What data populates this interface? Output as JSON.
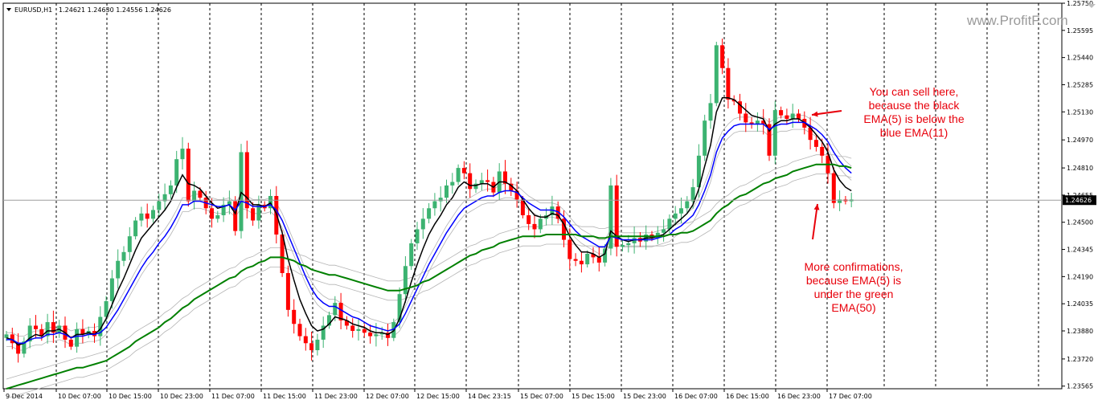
{
  "chart_data": {
    "type": "candlestick",
    "header": {
      "symbol": "EURUSD,H1",
      "ohlc": "1.24621 1.24630 1.24556 1.24626"
    },
    "watermark": "www.ProfitF.com",
    "current_price": {
      "value": 1.24626,
      "label": "1.24626"
    },
    "ylim": [
      1.2355,
      1.2575
    ],
    "yticks": [
      {
        "value": 1.2575,
        "label": "1.25750"
      },
      {
        "value": 1.25595,
        "label": "1.25595"
      },
      {
        "value": 1.2544,
        "label": "1.25440"
      },
      {
        "value": 1.25285,
        "label": "1.25285"
      },
      {
        "value": 1.2513,
        "label": "1.25130"
      },
      {
        "value": 1.2497,
        "label": "1.24970"
      },
      {
        "value": 1.2481,
        "label": "1.24810"
      },
      {
        "value": 1.24655,
        "label": "1.24655"
      },
      {
        "value": 1.245,
        "label": "1.24500"
      },
      {
        "value": 1.24345,
        "label": "1.24345"
      },
      {
        "value": 1.2419,
        "label": "1.24190"
      },
      {
        "value": 1.24035,
        "label": "1.24035"
      },
      {
        "value": 1.2388,
        "label": "1.23880"
      },
      {
        "value": 1.2372,
        "label": "1.23720"
      },
      {
        "value": 1.23565,
        "label": "1.23565"
      }
    ],
    "xticks": [
      "9 Dec 2014",
      "10 Dec 07:00",
      "10 Dec 15:00",
      "10 Dec 23:00",
      "11 Dec 07:00",
      "11 Dec 15:00",
      "11 Dec 23:00",
      "12 Dec 07:00",
      "12 Dec 15:00",
      "14 Dec 23:15",
      "15 Dec 07:00",
      "15 Dec 15:00",
      "15 Dec 23:00",
      "16 Dec 07:00",
      "16 Dec 15:00",
      "16 Dec 23:00",
      "17 Dec 07:00"
    ],
    "closes": [
      1.2386,
      1.2381,
      1.2375,
      1.2382,
      1.2391,
      1.2389,
      1.2385,
      1.2393,
      1.2387,
      1.2391,
      1.2383,
      1.2379,
      1.2389,
      1.2386,
      1.2388,
      1.2385,
      1.2396,
      1.2405,
      1.2418,
      1.2428,
      1.2433,
      1.2442,
      1.2451,
      1.2455,
      1.2452,
      1.2457,
      1.2462,
      1.2466,
      1.2471,
      1.2486,
      1.2492,
      1.2462,
      1.2468,
      1.2464,
      1.2458,
      1.2452,
      1.2454,
      1.246,
      1.2462,
      1.2445,
      1.249,
      1.2458,
      1.2451,
      1.246,
      1.2458,
      1.2465,
      1.2443,
      1.2421,
      1.24,
      1.2392,
      1.2385,
      1.2381,
      1.2377,
      1.2383,
      1.2391,
      1.2397,
      1.2404,
      1.2394,
      1.2391,
      1.2388,
      1.2389,
      1.2387,
      1.2385,
      1.2386,
      1.2387,
      1.2384,
      1.2393,
      1.2409,
      1.2425,
      1.2438,
      1.2446,
      1.2452,
      1.2458,
      1.2462,
      1.2464,
      1.2471,
      1.2473,
      1.2481,
      1.2478,
      1.2469,
      1.2472,
      1.2474,
      1.2473,
      1.2467,
      1.2479,
      1.2472,
      1.2468,
      1.2463,
      1.2454,
      1.2449,
      1.2446,
      1.2452,
      1.2454,
      1.2459,
      1.2452,
      1.244,
      1.2429,
      1.2428,
      1.2426,
      1.2432,
      1.243,
      1.2427,
      1.2435,
      1.2471,
      1.2436,
      1.2437,
      1.2438,
      1.2441,
      1.2439,
      1.2443,
      1.2441,
      1.2444,
      1.2446,
      1.2452,
      1.2455,
      1.2458,
      1.2462,
      1.247,
      1.2488,
      1.2508,
      1.2518,
      1.2551,
      1.2538,
      1.252,
      1.2519,
      1.2512,
      1.2507,
      1.2506,
      1.2508,
      1.2506,
      1.2488,
      1.2514,
      1.2511,
      1.2509,
      1.2512,
      1.2509,
      1.2504,
      1.2497,
      1.2493,
      1.2488,
      1.2478,
      1.2461,
      1.2463,
      1.2462,
      1.2463
    ],
    "series": [
      {
        "name": "EMA(5)",
        "color": "#000000",
        "values": [
          1.2384,
          1.2383,
          1.238,
          1.2381,
          1.2384,
          1.2386,
          1.2385,
          1.2388,
          1.2388,
          1.2389,
          1.2387,
          1.2384,
          1.2386,
          1.2386,
          1.2387,
          1.2386,
          1.2389,
          1.2395,
          1.2403,
          1.2411,
          1.2418,
          1.2426,
          1.2434,
          1.2441,
          1.2445,
          1.2449,
          1.2453,
          1.2457,
          1.2462,
          1.247,
          1.2477,
          1.2472,
          1.2471,
          1.2469,
          1.2465,
          1.2461,
          1.2458,
          1.2459,
          1.246,
          1.2455,
          1.2467,
          1.2464,
          1.246,
          1.246,
          1.2459,
          1.2461,
          1.2455,
          1.2444,
          1.2429,
          1.2417,
          1.2406,
          1.2398,
          1.2391,
          1.2388,
          1.2389,
          1.2392,
          1.2396,
          1.2395,
          1.2394,
          1.2392,
          1.2391,
          1.239,
          1.2388,
          1.2387,
          1.2387,
          1.2386,
          1.2388,
          1.2395,
          1.2405,
          1.2416,
          1.2426,
          1.2435,
          1.2443,
          1.2449,
          1.2454,
          1.246,
          1.2464,
          1.247,
          1.2473,
          1.2471,
          1.2471,
          1.2472,
          1.2472,
          1.247,
          1.2473,
          1.2473,
          1.2471,
          1.2468,
          1.2463,
          1.2458,
          1.2454,
          1.2453,
          1.2453,
          1.2455,
          1.2454,
          1.2449,
          1.2442,
          1.2437,
          1.2433,
          1.2433,
          1.2432,
          1.243,
          1.2432,
          1.2445,
          1.2442,
          1.244,
          1.2439,
          1.244,
          1.244,
          1.2441,
          1.2441,
          1.2442,
          1.2443,
          1.2446,
          1.2449,
          1.2452,
          1.2455,
          1.246,
          1.2469,
          1.2482,
          1.2494,
          1.2513,
          1.2521,
          1.2521,
          1.252,
          1.2517,
          1.2514,
          1.2511,
          1.251,
          1.2509,
          1.2502,
          1.2506,
          1.2508,
          1.2508,
          1.2509,
          1.2509,
          1.2507,
          1.2504,
          1.25,
          1.2496,
          1.249,
          1.248,
          1.2474,
          1.247,
          1.2468
        ]
      },
      {
        "name": "EMA(11)",
        "color": "#0000ff",
        "values": [
          1.2383,
          1.2383,
          1.2381,
          1.2381,
          1.2383,
          1.2384,
          1.2384,
          1.2386,
          1.2386,
          1.2387,
          1.2386,
          1.2384,
          1.2385,
          1.2385,
          1.2386,
          1.2386,
          1.2387,
          1.239,
          1.2395,
          1.24,
          1.2406,
          1.2412,
          1.2418,
          1.2424,
          1.2429,
          1.2433,
          1.2438,
          1.2442,
          1.2447,
          1.2453,
          1.246,
          1.246,
          1.2462,
          1.2462,
          1.2461,
          1.246,
          1.2459,
          1.2459,
          1.246,
          1.2457,
          1.2462,
          1.2461,
          1.2459,
          1.2459,
          1.2459,
          1.246,
          1.2457,
          1.2451,
          1.2443,
          1.2435,
          1.2427,
          1.2419,
          1.2412,
          1.2407,
          1.2404,
          1.2402,
          1.2402,
          1.24,
          1.2398,
          1.2396,
          1.2395,
          1.2393,
          1.2391,
          1.239,
          1.2389,
          1.2388,
          1.2389,
          1.2392,
          1.2398,
          1.2405,
          1.2412,
          1.2419,
          1.2426,
          1.2432,
          1.2438,
          1.2444,
          1.2449,
          1.2454,
          1.2458,
          1.246,
          1.2462,
          1.2464,
          1.2465,
          1.2465,
          1.2467,
          1.2468,
          1.2468,
          1.2467,
          1.2464,
          1.2461,
          1.2459,
          1.2457,
          1.2457,
          1.2457,
          1.2456,
          1.2453,
          1.2449,
          1.2445,
          1.2442,
          1.244,
          1.2438,
          1.2436,
          1.2436,
          1.2442,
          1.2441,
          1.244,
          1.244,
          1.244,
          1.244,
          1.244,
          1.244,
          1.2441,
          1.2442,
          1.2443,
          1.2446,
          1.2448,
          1.2451,
          1.2454,
          1.246,
          1.2468,
          1.2477,
          1.249,
          1.2498,
          1.2502,
          1.2505,
          1.2506,
          1.2506,
          1.2506,
          1.2506,
          1.2506,
          1.2503,
          1.2505,
          1.2506,
          1.2506,
          1.2507,
          1.2507,
          1.2507,
          1.2505,
          1.2503,
          1.25,
          1.2496,
          1.249,
          1.2485,
          1.2481,
          1.2478
        ]
      },
      {
        "name": "EMA(50)",
        "color": "#008000",
        "values": [
          1.2355,
          1.2356,
          1.2357,
          1.2358,
          1.2359,
          1.236,
          1.2361,
          1.2362,
          1.2363,
          1.2364,
          1.2365,
          1.2366,
          1.2367,
          1.2367,
          1.2368,
          1.2369,
          1.237,
          1.2371,
          1.2373,
          1.2375,
          1.2377,
          1.2379,
          1.2382,
          1.2384,
          1.2386,
          1.2388,
          1.239,
          1.2393,
          1.2395,
          1.2398,
          1.2401,
          1.2403,
          1.2406,
          1.2408,
          1.241,
          1.2412,
          1.2414,
          1.2416,
          1.2418,
          1.2419,
          1.2422,
          1.2424,
          1.2425,
          1.2427,
          1.2428,
          1.243,
          1.243,
          1.243,
          1.2429,
          1.2428,
          1.2426,
          1.2425,
          1.2423,
          1.2422,
          1.2421,
          1.242,
          1.242,
          1.2419,
          1.2418,
          1.2417,
          1.2416,
          1.2415,
          1.2414,
          1.2413,
          1.2412,
          1.2411,
          1.2411,
          1.2411,
          1.2412,
          1.2413,
          1.2414,
          1.2416,
          1.2417,
          1.2419,
          1.2421,
          1.2423,
          1.2425,
          1.2427,
          1.2429,
          1.2431,
          1.2432,
          1.2434,
          1.2435,
          1.2436,
          1.2438,
          1.2439,
          1.244,
          1.2441,
          1.2442,
          1.2442,
          1.2442,
          1.2442,
          1.2443,
          1.2443,
          1.2443,
          1.2443,
          1.2443,
          1.2443,
          1.2442,
          1.2442,
          1.2442,
          1.2441,
          1.2441,
          1.2442,
          1.2442,
          1.2442,
          1.2442,
          1.2442,
          1.2442,
          1.2442,
          1.2442,
          1.2442,
          1.2442,
          1.2443,
          1.2443,
          1.2444,
          1.2444,
          1.2445,
          1.2447,
          1.2449,
          1.2451,
          1.2455,
          1.2458,
          1.246,
          1.2463,
          1.2465,
          1.2466,
          1.2468,
          1.247,
          1.2472,
          1.2473,
          1.2475,
          1.2476,
          1.2477,
          1.2479,
          1.248,
          1.2481,
          1.2482,
          1.2483,
          1.2483,
          1.2483,
          1.2483,
          1.2482,
          1.2482,
          1.2481
        ]
      }
    ],
    "annotations": [
      {
        "lines": [
          "You can sell here,",
          "because the black",
          "EMA(5) is below the",
          "blue EMA(11)"
        ],
        "color": "#e8000b"
      },
      {
        "lines": [
          "More confirmations,",
          "because EMA(5) is",
          "under the green",
          "EMA(50)"
        ],
        "color": "#e8000b"
      }
    ],
    "colors": {
      "bull": "#3cb371",
      "bear": "#ff0000",
      "grid": "#000000",
      "band": "#b4b4b4"
    },
    "grid": true
  }
}
